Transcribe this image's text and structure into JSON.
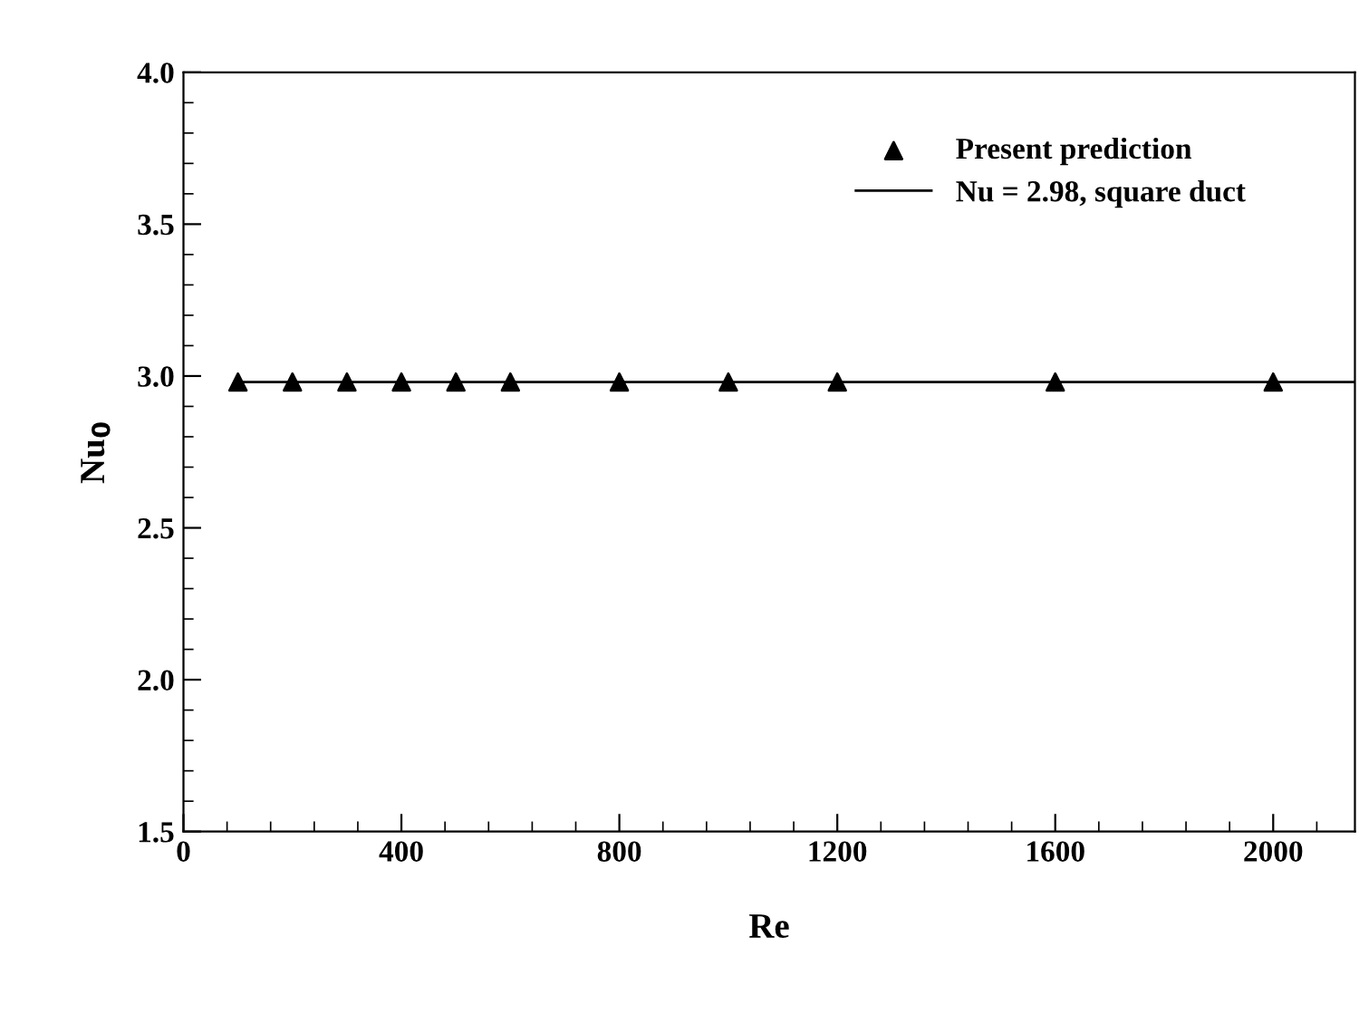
{
  "chart_data": {
    "type": "scatter",
    "xlabel": "Re",
    "ylabel": "Nu$_{0}$",
    "x": [
      100,
      200,
      300,
      400,
      500,
      600,
      800,
      1000,
      1200,
      1600,
      2000
    ],
    "series": [
      {
        "name": "Present prediction",
        "color": "#000000",
        "marker": "triangle",
        "values": [
          2.98,
          2.98,
          2.98,
          2.98,
          2.98,
          2.98,
          2.98,
          2.98,
          2.98,
          2.98,
          2.98
        ]
      },
      {
        "name": "Nu = 2.98, square duct",
        "type": "line",
        "color": "#000000",
        "marker": "none",
        "line_style": "solid",
        "x": [
          100,
          2150
        ],
        "values": [
          2.98,
          2.98
        ]
      }
    ],
    "xlim": [
      0,
      2150
    ],
    "xticks": [
      0,
      400,
      800,
      1200,
      1600,
      2000
    ],
    "ylim": [
      1.5,
      4.0
    ],
    "yticks": [
      {
        "value": 1.5,
        "label": "1.5"
      },
      {
        "value": 2.0,
        "label": "2.0"
      },
      {
        "value": 2.5,
        "label": "2.5"
      },
      {
        "value": 3.0,
        "label": "3.0"
      },
      {
        "value": 3.5,
        "label": "3.5"
      },
      {
        "value": 4.0,
        "label": "4.0"
      }
    ],
    "grid": false,
    "legend": "top right"
  }
}
